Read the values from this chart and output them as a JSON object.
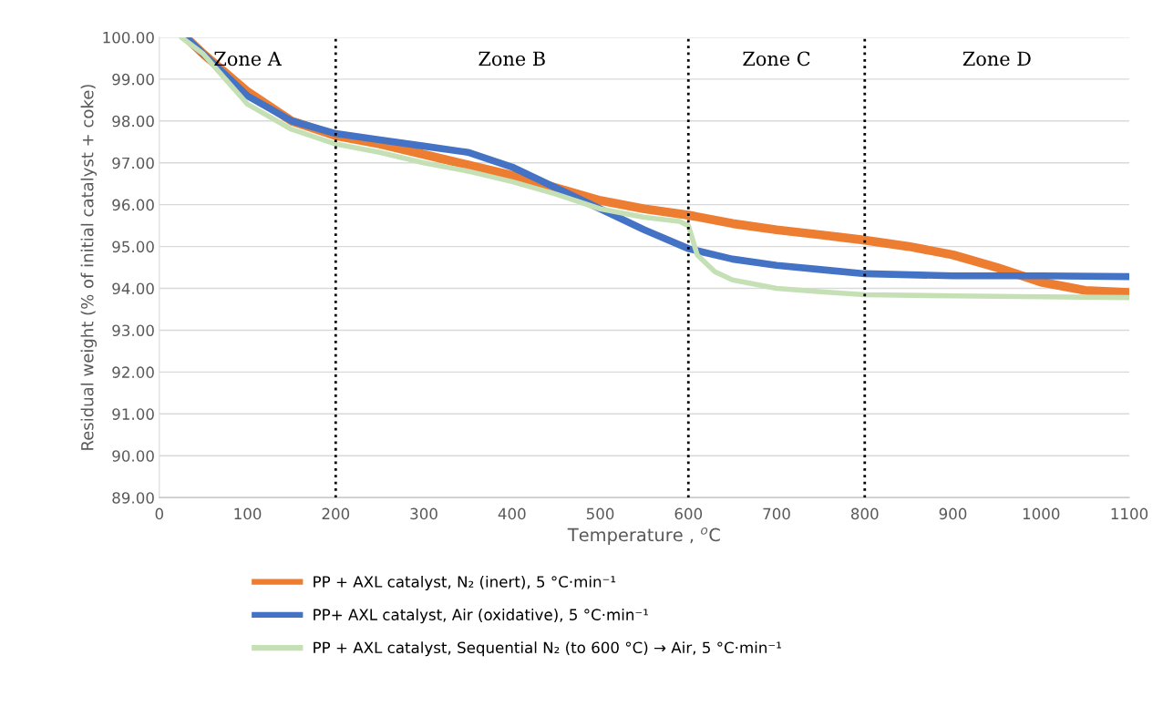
{
  "chart_data": {
    "type": "line",
    "xlabel": "Temperature , $^{o}$C",
    "ylabel": "Residual weight (% of initial catalyst + coke)",
    "xlim": [
      0,
      1100
    ],
    "xticks": [
      0,
      100,
      200,
      300,
      400,
      500,
      600,
      700,
      800,
      900,
      1000,
      1100
    ],
    "ylim": [
      89,
      100
    ],
    "yticks": [
      {
        "value": 89,
        "label": "89.00"
      },
      {
        "value": 90,
        "label": "90.00"
      },
      {
        "value": 91,
        "label": "91.00"
      },
      {
        "value": 92,
        "label": "92.00"
      },
      {
        "value": 93,
        "label": "93.00"
      },
      {
        "value": 94,
        "label": "94.00"
      },
      {
        "value": 95,
        "label": "95.00"
      },
      {
        "value": 96,
        "label": "96.00"
      },
      {
        "value": 97,
        "label": "97.00"
      },
      {
        "value": 98,
        "label": "98.00"
      },
      {
        "value": 99,
        "label": "99.00"
      },
      {
        "value": 100,
        "label": "100.00"
      }
    ],
    "grid": "y",
    "legend": "bottom",
    "marker": "none",
    "line_style": "solid",
    "series": [
      {
        "name": "PP + AXL catalyst, N₂ (inert), 5 °C·min⁻¹",
        "color": "#ed7d31",
        "x": [
          30,
          50,
          100,
          150,
          200,
          250,
          300,
          350,
          400,
          450,
          500,
          550,
          600,
          650,
          700,
          750,
          800,
          850,
          900,
          950,
          1000,
          1050,
          1100
        ],
        "values": [
          100,
          99.6,
          98.7,
          98.0,
          97.65,
          97.45,
          97.2,
          96.95,
          96.7,
          96.4,
          96.1,
          95.9,
          95.75,
          95.55,
          95.4,
          95.28,
          95.15,
          95.0,
          94.8,
          94.5,
          94.15,
          93.95,
          93.9
        ]
      },
      {
        "name": "PP+ AXL catalyst, Air (oxidative), 5 °C·min⁻¹",
        "color": "#4472c4",
        "x": [
          30,
          50,
          100,
          150,
          200,
          250,
          300,
          350,
          400,
          450,
          500,
          550,
          600,
          650,
          700,
          750,
          800,
          900,
          1000,
          1100
        ],
        "values": [
          100,
          99.6,
          98.6,
          98.0,
          97.7,
          97.55,
          97.4,
          97.25,
          96.9,
          96.4,
          95.9,
          95.4,
          94.95,
          94.7,
          94.55,
          94.45,
          94.35,
          94.3,
          94.3,
          94.28
        ]
      },
      {
        "name": "PP + AXL catalyst, Sequential N₂ (to 600 °C) → Air, 5 °C·min⁻¹",
        "color": "#c5e0b4",
        "x": [
          25,
          50,
          100,
          150,
          200,
          250,
          300,
          350,
          400,
          450,
          500,
          550,
          590,
          600,
          610,
          630,
          650,
          700,
          750,
          800,
          900,
          1000,
          1100
        ],
        "values": [
          100,
          99.6,
          98.4,
          97.8,
          97.45,
          97.25,
          97.0,
          96.8,
          96.55,
          96.25,
          95.9,
          95.7,
          95.6,
          95.5,
          94.8,
          94.4,
          94.2,
          94.0,
          93.92,
          93.85,
          93.82,
          93.8,
          93.78
        ]
      }
    ],
    "ref_lines": [
      {
        "axis": "x",
        "value": 200,
        "color": "#000000",
        "line_style": "dotted"
      },
      {
        "axis": "x",
        "value": 600,
        "color": "#000000",
        "line_style": "dotted"
      },
      {
        "axis": "x",
        "value": 800,
        "color": "#000000",
        "line_style": "dotted"
      }
    ],
    "annotations": [
      "Zone A",
      "Zone B",
      "Zone C",
      "Zone D"
    ]
  }
}
